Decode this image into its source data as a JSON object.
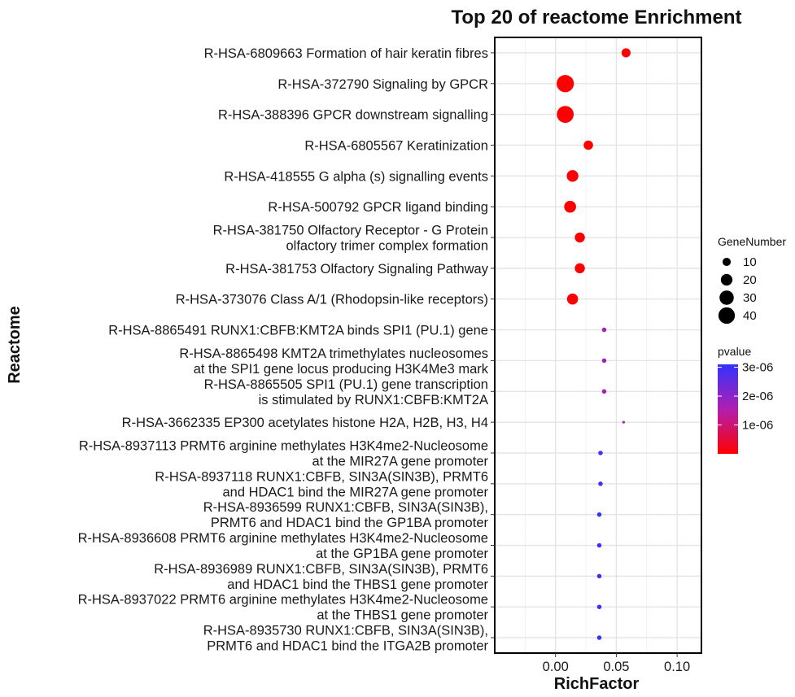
{
  "chart_data": {
    "type": "scatter",
    "title": "Top 20 of reactome Enrichment",
    "xlabel": "RichFactor",
    "ylabel": "Reactome",
    "xlim": [
      -0.05,
      0.12
    ],
    "xticks": [
      "0.00",
      "0.05",
      "0.10"
    ],
    "xtick_values": [
      0.0,
      0.05,
      0.1
    ],
    "grid": true,
    "points": [
      {
        "label": [
          "R-HSA-6809663 Formation of hair keratin fibres"
        ],
        "x": 0.058,
        "gene_number": 12,
        "pvalue": 1e-08
      },
      {
        "label": [
          "R-HSA-372790 Signaling by GPCR"
        ],
        "x": 0.008,
        "gene_number": 44,
        "pvalue": 1e-08
      },
      {
        "label": [
          "R-HSA-388396 GPCR downstream signalling"
        ],
        "x": 0.008,
        "gene_number": 42,
        "pvalue": 1e-08
      },
      {
        "label": [
          "R-HSA-6805567 Keratinization"
        ],
        "x": 0.027,
        "gene_number": 13,
        "pvalue": 1e-08
      },
      {
        "label": [
          "R-HSA-418555 G alpha (s) signalling events"
        ],
        "x": 0.014,
        "gene_number": 20,
        "pvalue": 1e-08
      },
      {
        "label": [
          "R-HSA-500792 GPCR ligand binding"
        ],
        "x": 0.012,
        "gene_number": 21,
        "pvalue": 1e-08
      },
      {
        "label": [
          "R-HSA-381750 Olfactory Receptor - G Protein",
          "olfactory trimer complex formation"
        ],
        "x": 0.02,
        "gene_number": 15,
        "pvalue": 1e-08
      },
      {
        "label": [
          "R-HSA-381753 Olfactory Signaling Pathway"
        ],
        "x": 0.02,
        "gene_number": 15,
        "pvalue": 1e-08
      },
      {
        "label": [
          "R-HSA-373076 Class A/1 (Rhodopsin-like receptors)"
        ],
        "x": 0.014,
        "gene_number": 18,
        "pvalue": 1e-08
      },
      {
        "label": [
          "R-HSA-8865491 RUNX1:CBFB:KMT2A binds SPI1 (PU.1) gene"
        ],
        "x": 0.04,
        "gene_number": 3,
        "pvalue": 1.7e-06
      },
      {
        "label": [
          "R-HSA-8865498 KMT2A trimethylates nucleosomes",
          "at the SPI1 gene locus producing H3K4Me3 mark"
        ],
        "x": 0.04,
        "gene_number": 3,
        "pvalue": 1.7e-06
      },
      {
        "label": [
          "R-HSA-8865505 SPI1 (PU.1) gene transcription",
          "is stimulated by RUNX1:CBFB:KMT2A"
        ],
        "x": 0.04,
        "gene_number": 3,
        "pvalue": 1.7e-06
      },
      {
        "label": [
          "R-HSA-3662335 EP300 acetylates histone H2A, H2B, H3, H4"
        ],
        "x": 0.056,
        "gene_number": 1,
        "pvalue": 1.6e-06
      },
      {
        "label": [
          "R-HSA-8937113 PRMT6 arginine methylates H3K4me2-Nucleosome",
          "at the MIR27A gene promoter"
        ],
        "x": 0.037,
        "gene_number": 3,
        "pvalue": 2.9e-06
      },
      {
        "label": [
          "R-HSA-8937118 RUNX1:CBFB, SIN3A(SIN3B), PRMT6",
          "and HDAC1 bind the MIR27A gene promoter"
        ],
        "x": 0.037,
        "gene_number": 3,
        "pvalue": 2.9e-06
      },
      {
        "label": [
          "R-HSA-8936599 RUNX1:CBFB, SIN3A(SIN3B),",
          "PRMT6 and HDAC1 bind the GP1BA promoter"
        ],
        "x": 0.036,
        "gene_number": 3,
        "pvalue": 3e-06
      },
      {
        "label": [
          "R-HSA-8936608 PRMT6 arginine methylates H3K4me2-Nucleosome",
          "at the GP1BA gene promoter"
        ],
        "x": 0.036,
        "gene_number": 3,
        "pvalue": 3e-06
      },
      {
        "label": [
          "R-HSA-8936989 RUNX1:CBFB, SIN3A(SIN3B), PRMT6",
          "and HDAC1 bind the THBS1 gene promoter"
        ],
        "x": 0.036,
        "gene_number": 3,
        "pvalue": 3e-06
      },
      {
        "label": [
          "R-HSA-8937022 PRMT6 arginine methylates H3K4me2-Nucleosome",
          "at the THBS1 gene promoter"
        ],
        "x": 0.036,
        "gene_number": 3,
        "pvalue": 3e-06
      },
      {
        "label": [
          "R-HSA-8935730 RUNX1:CBFB, SIN3A(SIN3B),",
          "PRMT6 and HDAC1 bind the ITGA2B promoter"
        ],
        "x": 0.036,
        "gene_number": 3,
        "pvalue": 3e-06
      }
    ],
    "size_legend": {
      "title": "GeneNumber",
      "values": [
        10,
        20,
        30,
        40
      ],
      "labels": [
        "10",
        "20",
        "30",
        "40"
      ]
    },
    "color_legend": {
      "title": "pvalue",
      "min": 0,
      "max": 3.1e-06,
      "ticks": [
        1e-06,
        2e-06,
        3e-06
      ],
      "labels": [
        "1e-06",
        "2e-06",
        "3e-06"
      ],
      "low_color": "#ff0000",
      "high_color": "#3333ff"
    }
  }
}
